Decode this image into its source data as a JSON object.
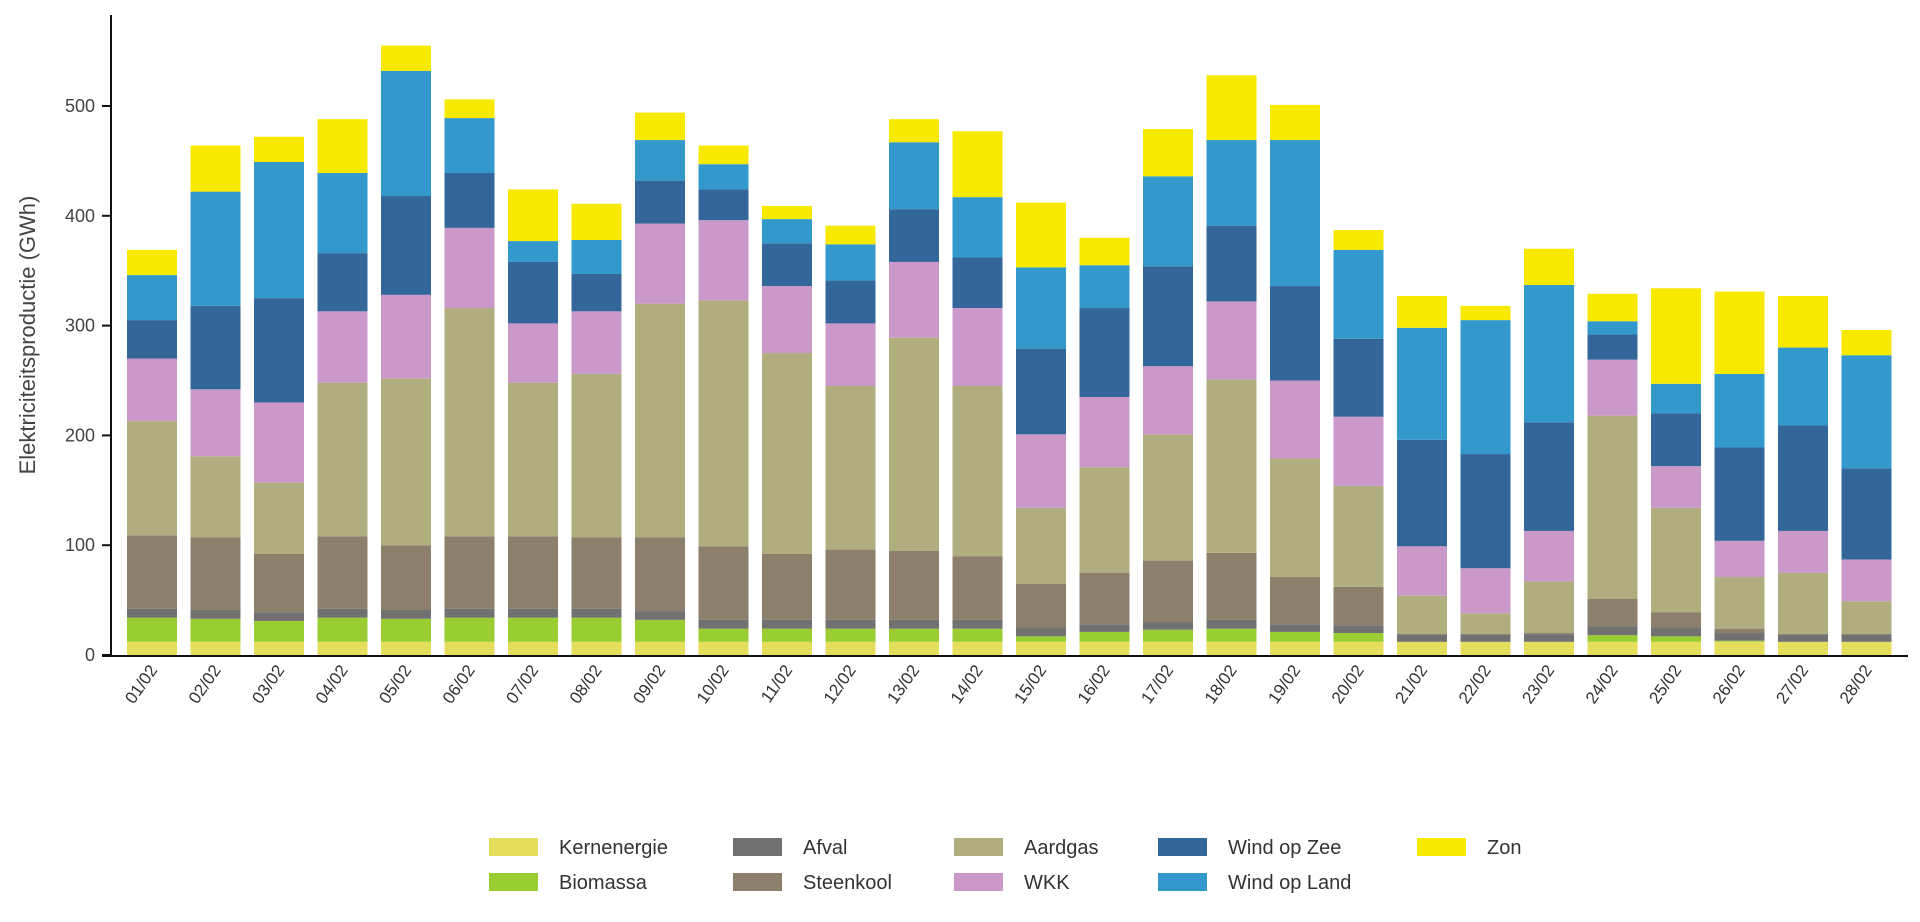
{
  "chart_data": {
    "type": "bar",
    "stacked": true,
    "title": "",
    "xlabel": "",
    "ylabel": "Elektriciteitsproductie (GWh)",
    "ylim": [
      0,
      580
    ],
    "yticks": [
      0,
      100,
      200,
      300,
      400,
      500
    ],
    "grid": false,
    "legend_position": "bottom",
    "categories": [
      "01/02",
      "02/02",
      "03/02",
      "04/02",
      "05/02",
      "06/02",
      "07/02",
      "08/02",
      "09/02",
      "10/02",
      "11/02",
      "12/02",
      "13/02",
      "14/02",
      "15/02",
      "16/02",
      "17/02",
      "18/02",
      "19/02",
      "20/02",
      "21/02",
      "22/02",
      "23/02",
      "24/02",
      "25/02",
      "26/02",
      "27/02",
      "28/02"
    ],
    "series": [
      {
        "name": "Kernenergie",
        "color": "#e5de5d",
        "values": [
          12,
          12,
          12,
          12,
          12,
          12,
          12,
          12,
          12,
          12,
          12,
          12,
          12,
          12,
          12,
          12,
          12,
          12,
          12,
          12,
          12,
          12,
          12,
          12,
          12,
          12,
          12,
          12
        ]
      },
      {
        "name": "Biomassa",
        "color": "#9acd32",
        "values": [
          22,
          21,
          19,
          22,
          21,
          22,
          22,
          22,
          20,
          12,
          12,
          12,
          12,
          12,
          5,
          9,
          11,
          12,
          9,
          8,
          0,
          0,
          0,
          6,
          5,
          1,
          0,
          0
        ]
      },
      {
        "name": "Afval",
        "color": "#717171",
        "values": [
          8,
          8,
          8,
          8,
          8,
          8,
          8,
          8,
          8,
          8,
          8,
          8,
          8,
          8,
          8,
          7,
          7,
          8,
          7,
          7,
          7,
          7,
          7,
          8,
          8,
          7,
          7,
          7
        ]
      },
      {
        "name": "Steenkool",
        "color": "#8c7f6c",
        "values": [
          67,
          66,
          53,
          66,
          59,
          66,
          66,
          65,
          67,
          67,
          60,
          64,
          63,
          58,
          40,
          47,
          56,
          61,
          43,
          35,
          0,
          0,
          1,
          25,
          14,
          4,
          0,
          0
        ]
      },
      {
        "name": "Aardgas",
        "color": "#b0ae7e",
        "values": [
          104,
          74,
          65,
          140,
          152,
          208,
          140,
          149,
          213,
          224,
          183,
          149,
          194,
          155,
          69,
          96,
          115,
          158,
          108,
          92,
          35,
          19,
          47,
          167,
          95,
          47,
          56,
          30
        ]
      },
      {
        "name": "WKK",
        "color": "#cb99c9",
        "values": [
          57,
          61,
          73,
          65,
          76,
          73,
          54,
          57,
          73,
          73,
          61,
          57,
          69,
          71,
          67,
          64,
          62,
          71,
          71,
          63,
          45,
          41,
          46,
          51,
          38,
          33,
          38,
          38
        ]
      },
      {
        "name": "Wind op Zee",
        "color": "#336699",
        "values": [
          35,
          76,
          95,
          53,
          90,
          50,
          56,
          34,
          39,
          28,
          39,
          39,
          48,
          46,
          78,
          81,
          91,
          69,
          86,
          71,
          97,
          104,
          99,
          23,
          48,
          85,
          96,
          83
        ]
      },
      {
        "name": "Wind op Land",
        "color": "#3399cc",
        "values": [
          41,
          104,
          124,
          73,
          114,
          50,
          19,
          31,
          37,
          23,
          22,
          33,
          61,
          55,
          74,
          39,
          82,
          78,
          133,
          81,
          102,
          122,
          125,
          12,
          27,
          67,
          71,
          103
        ]
      },
      {
        "name": "Zon",
        "color": "#f7e900",
        "values": [
          23,
          42,
          23,
          49,
          23,
          17,
          47,
          33,
          25,
          17,
          12,
          17,
          21,
          60,
          59,
          25,
          43,
          59,
          32,
          18,
          29,
          13,
          33,
          25,
          87,
          75,
          47,
          23
        ]
      }
    ]
  }
}
